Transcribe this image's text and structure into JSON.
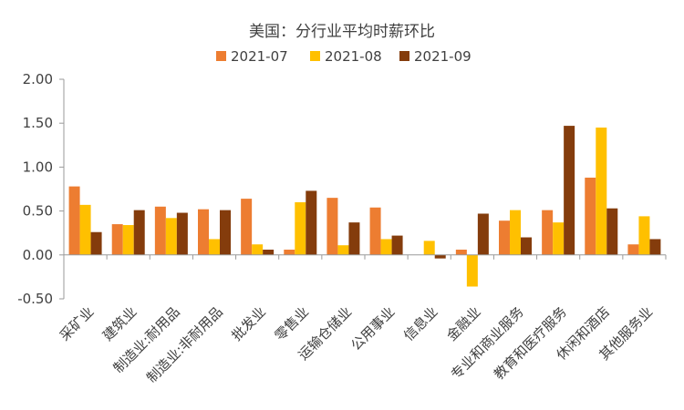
{
  "chart_data": {
    "type": "bar",
    "title": "美国：分行业平均时薪环比",
    "categories": [
      "采矿业",
      "建筑业",
      "制造业:耐用品",
      "制造业:非耐用品",
      "批发业",
      "零售业",
      "运输仓储业",
      "公用事业",
      "信息业",
      "金融业",
      "专业和商业服务",
      "教育和医疗服务",
      "休闲和酒店",
      "其他服务业"
    ],
    "series": [
      {
        "name": "2021-07",
        "color": "#ED7D31",
        "values": [
          0.78,
          0.35,
          0.55,
          0.52,
          0.64,
          0.06,
          0.65,
          0.54,
          0.0,
          0.06,
          0.39,
          0.51,
          0.88,
          0.12
        ]
      },
      {
        "name": "2021-08",
        "color": "#FFC000",
        "values": [
          0.57,
          0.34,
          0.42,
          0.18,
          0.12,
          0.6,
          0.11,
          0.18,
          0.16,
          -0.36,
          0.51,
          0.37,
          1.45,
          0.44
        ]
      },
      {
        "name": "2021-09",
        "color": "#843C0C",
        "values": [
          0.26,
          0.51,
          0.48,
          0.51,
          0.06,
          0.73,
          0.37,
          0.22,
          -0.04,
          0.47,
          0.2,
          1.47,
          0.53,
          0.18
        ]
      }
    ],
    "ylim": [
      -0.5,
      2.0
    ],
    "yticks": [
      "2.00",
      "1.50",
      "1.00",
      "0.50",
      "0.00",
      "-0.50"
    ],
    "ytick_values": [
      2.0,
      1.5,
      1.0,
      0.5,
      0.0,
      -0.5
    ],
    "xlabel": "",
    "ylabel": "",
    "legend_position": "top-center",
    "grid": false
  }
}
